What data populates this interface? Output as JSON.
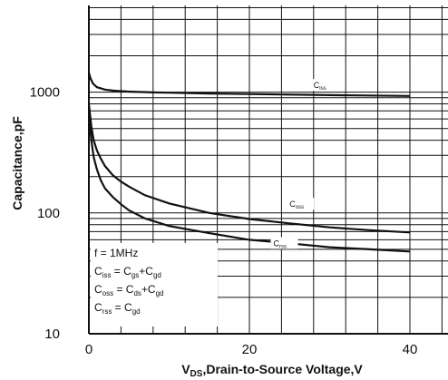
{
  "chart_data": {
    "type": "line",
    "title": "",
    "xlabel": {
      "pre": "V",
      "sub": "DS",
      "post": ",Drain-to-Source Voltage,V"
    },
    "ylabel": "Capacitance,pF",
    "y_scale": "log",
    "xlim": [
      0,
      40
    ],
    "ylim": [
      10,
      10000
    ],
    "x_ticks": [
      "0",
      "20",
      "40"
    ],
    "y_ticks": [
      "10",
      "100",
      "1000"
    ],
    "grid": true,
    "series": [
      {
        "name": {
          "pre": "C",
          "sub": "iss"
        },
        "x": [
          0,
          0.2,
          0.5,
          1,
          2,
          3,
          5,
          8,
          10,
          15,
          20,
          30,
          40
        ],
        "y": [
          1450,
          1300,
          1180,
          1100,
          1050,
          1030,
          1010,
          995,
          990,
          975,
          965,
          945,
          930
        ]
      },
      {
        "name": {
          "pre": "C",
          "sub": "oss"
        },
        "x": [
          0,
          0.3,
          0.6,
          1,
          1.5,
          2,
          3,
          4,
          5,
          7,
          10,
          15,
          20,
          25,
          30,
          35,
          40
        ],
        "y": [
          800,
          520,
          400,
          330,
          280,
          245,
          205,
          182,
          165,
          140,
          120,
          100,
          89,
          82,
          76,
          72,
          69
        ]
      },
      {
        "name": {
          "pre": "C",
          "sub": "rss"
        },
        "x": [
          0,
          0.3,
          0.6,
          1,
          1.5,
          2,
          3,
          4,
          5,
          7,
          10,
          15,
          20,
          25,
          30,
          35,
          40
        ],
        "y": [
          700,
          400,
          290,
          230,
          185,
          160,
          135,
          118,
          105,
          90,
          78,
          68,
          60,
          56,
          52,
          50,
          48
        ]
      }
    ],
    "legend": {
      "placement": "bottom-left",
      "lines": [
        [
          {
            "t": "f = 1MHz"
          }
        ],
        [
          {
            "t": "C"
          },
          {
            "t": "iss",
            "sub": true
          },
          {
            "t": " = C"
          },
          {
            "t": "gs",
            "sub": true
          },
          {
            "t": "+C"
          },
          {
            "t": "gd",
            "sub": true
          }
        ],
        [
          {
            "t": "C"
          },
          {
            "t": "oss",
            "sub": true
          },
          {
            "t": " = C"
          },
          {
            "t": "ds",
            "sub": true
          },
          {
            "t": "+C"
          },
          {
            "t": "gd",
            "sub": true
          }
        ],
        [
          {
            "t": "C"
          },
          {
            "t": "rss",
            "sub": true
          },
          {
            "t": " = C"
          },
          {
            "t": "gd",
            "sub": true
          }
        ]
      ]
    }
  }
}
